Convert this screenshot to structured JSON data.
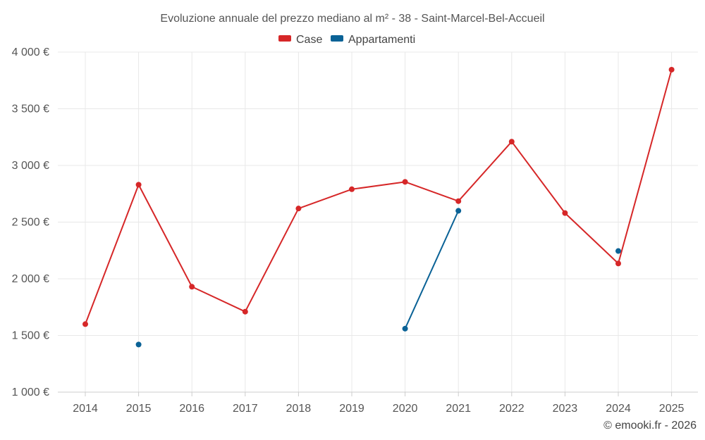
{
  "chart_data": {
    "type": "line",
    "title": "Evoluzione annuale del prezzo mediano al m² - 38 - Saint-Marcel-Bel-Accueil",
    "categories": [
      "2014",
      "2015",
      "2016",
      "2017",
      "2018",
      "2019",
      "2020",
      "2021",
      "2022",
      "2023",
      "2024",
      "2025"
    ],
    "ylim": [
      1000,
      4000
    ],
    "y_ticks": [
      1000,
      1500,
      2000,
      2500,
      3000,
      3500,
      4000
    ],
    "y_tick_labels": [
      "1 000 €",
      "1 500 €",
      "2 000 €",
      "2 500 €",
      "3 000 €",
      "3 500 €",
      "4 000 €"
    ],
    "legend_position": "top-center",
    "grid": true,
    "series": [
      {
        "name": "Case",
        "color": "#d62728",
        "values": [
          1600,
          2830,
          1930,
          1710,
          2620,
          2790,
          2855,
          2685,
          3210,
          2580,
          2135,
          3845
        ]
      },
      {
        "name": "Appartamenti",
        "color": "#0a6296",
        "values": [
          null,
          1420,
          null,
          null,
          null,
          null,
          1560,
          2600,
          null,
          null,
          2245,
          null
        ]
      }
    ]
  },
  "credit": "© emooki.fr - 2026"
}
